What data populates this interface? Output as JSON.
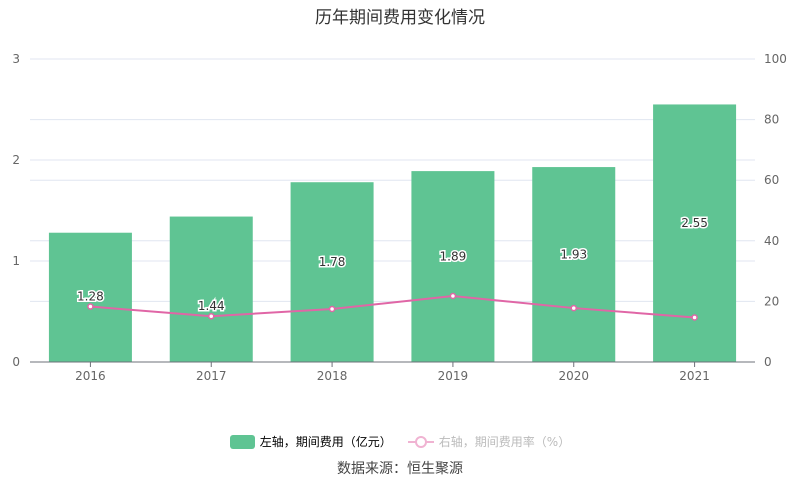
{
  "chart_data": {
    "type": "bar",
    "title": "历年期间费用变化情况",
    "categories": [
      "2016",
      "2017",
      "2018",
      "2019",
      "2020",
      "2021"
    ],
    "series": [
      {
        "name": "左轴，期间费用（亿元）",
        "type": "bar",
        "axis": "left",
        "color": "#5fc493",
        "values": [
          1.28,
          1.44,
          1.78,
          1.89,
          1.93,
          2.55
        ],
        "labels": [
          "1.28",
          "1.44",
          "1.78",
          "1.89",
          "1.93",
          "2.55"
        ]
      },
      {
        "name": "右轴，期间费用率（%）",
        "type": "line",
        "axis": "right",
        "color": "#e066a6",
        "values": [
          18.3,
          15.1,
          17.5,
          21.8,
          17.8,
          14.7
        ]
      }
    ],
    "left_axis": {
      "ylim": [
        0,
        3
      ],
      "ticks": [
        "0",
        "1",
        "2",
        "3"
      ]
    },
    "right_axis": {
      "ylim": [
        0,
        100
      ],
      "ticks": [
        "0",
        "20",
        "40",
        "60",
        "80",
        "100"
      ]
    },
    "grid": true,
    "legend_position": "bottom"
  },
  "legend": {
    "bar_label": "左轴，期间费用（亿元）",
    "line_label": "右轴，期间费用率（%）"
  },
  "source": "数据来源：恒生聚源"
}
